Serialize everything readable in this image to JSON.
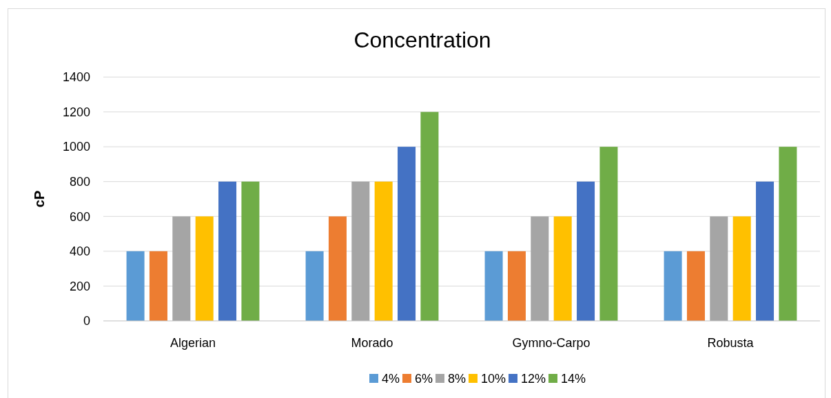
{
  "chart_data": {
    "type": "bar",
    "title": "Concentration",
    "ylabel": "cP",
    "categories": [
      "Algerian",
      "Morado",
      "Gymno-Carpo",
      "Robusta"
    ],
    "series": [
      {
        "name": "4%",
        "color": "#5b9bd5",
        "values": [
          400,
          400,
          400,
          400
        ]
      },
      {
        "name": "6%",
        "color": "#ed7d31",
        "values": [
          400,
          600,
          400,
          400
        ]
      },
      {
        "name": "8%",
        "color": "#a5a5a5",
        "values": [
          600,
          800,
          600,
          600
        ]
      },
      {
        "name": "10%",
        "color": "#ffc000",
        "values": [
          600,
          800,
          600,
          600
        ]
      },
      {
        "name": "12%",
        "color": "#4472c4",
        "values": [
          800,
          1000,
          800,
          800
        ]
      },
      {
        "name": "14%",
        "color": "#70ad47",
        "values": [
          800,
          1200,
          1000,
          1000
        ]
      }
    ],
    "ylim": [
      0,
      1400
    ],
    "yticks": [
      0,
      200,
      400,
      600,
      800,
      1000,
      1200,
      1400
    ],
    "grid": "y",
    "legend": "bottom"
  }
}
